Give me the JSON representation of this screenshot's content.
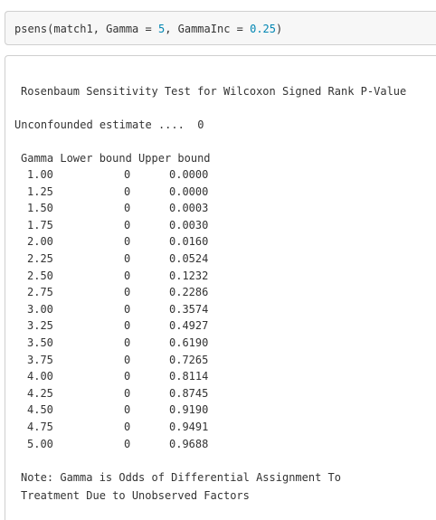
{
  "code": {
    "fn_prefix": "psens(match1, Gamma = ",
    "gamma_value": "5",
    "mid": ", GammaInc = ",
    "gamma_inc_value": "0.25",
    "close": ")"
  },
  "output": {
    "title": "Rosenbaum Sensitivity Test for Wilcoxon Signed Rank P-Value",
    "unconfounded": "Unconfounded estimate ....  0",
    "header": "Gamma Lower bound Upper bound",
    "rows": [
      {
        "gamma": "1.00",
        "lower": "0",
        "upper": "0.0000"
      },
      {
        "gamma": "1.25",
        "lower": "0",
        "upper": "0.0000"
      },
      {
        "gamma": "1.50",
        "lower": "0",
        "upper": "0.0003"
      },
      {
        "gamma": "1.75",
        "lower": "0",
        "upper": "0.0030"
      },
      {
        "gamma": "2.00",
        "lower": "0",
        "upper": "0.0160"
      },
      {
        "gamma": "2.25",
        "lower": "0",
        "upper": "0.0524"
      },
      {
        "gamma": "2.50",
        "lower": "0",
        "upper": "0.1232"
      },
      {
        "gamma": "2.75",
        "lower": "0",
        "upper": "0.2286"
      },
      {
        "gamma": "3.00",
        "lower": "0",
        "upper": "0.3574"
      },
      {
        "gamma": "3.25",
        "lower": "0",
        "upper": "0.4927"
      },
      {
        "gamma": "3.50",
        "lower": "0",
        "upper": "0.6190"
      },
      {
        "gamma": "3.75",
        "lower": "0",
        "upper": "0.7265"
      },
      {
        "gamma": "4.00",
        "lower": "0",
        "upper": "0.8114"
      },
      {
        "gamma": "4.25",
        "lower": "0",
        "upper": "0.8745"
      },
      {
        "gamma": "4.50",
        "lower": "0",
        "upper": "0.9190"
      },
      {
        "gamma": "4.75",
        "lower": "0",
        "upper": "0.9491"
      },
      {
        "gamma": "5.00",
        "lower": "0",
        "upper": "0.9688"
      }
    ],
    "note_line1": "Note: Gamma is Odds of Differential Assignment To",
    "note_line2": "Treatment Due to Unobserved Factors"
  },
  "colors": {
    "number_token": "#0086b3",
    "text": "#333333",
    "code_background": "#f7f7f7",
    "border": "#cfcfcf"
  }
}
